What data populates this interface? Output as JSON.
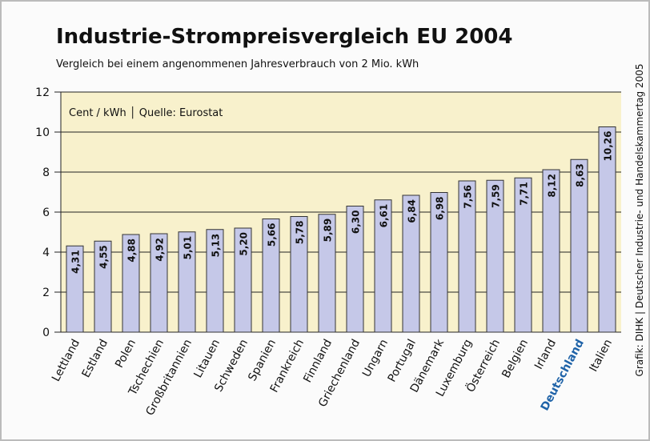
{
  "chart_data": {
    "type": "bar",
    "title": "Industrie-Strompreisvergleich EU 2004",
    "subtitle": "Vergleich bei einem angenommenen Jahresverbrauch von 2 Mio. kWh",
    "annotation": "Cent / kWh  │  Quelle: Eurostat",
    "source": "Grafik: DIHK | Deutscher Industrie- und Handelskammertag 2005",
    "categories": [
      "Lettland",
      "Estland",
      "Polen",
      "Tschechien",
      "Großbritannien",
      "Litauen",
      "Schweden",
      "Spanien",
      "Frankreich",
      "Finnland",
      "Griechenland",
      "Ungarn",
      "Portugal",
      "Dänemark",
      "Luxemburg",
      "Österreich",
      "Belgien",
      "Irland",
      "Deutschland",
      "Italien"
    ],
    "values": [
      4.31,
      4.55,
      4.88,
      4.92,
      5.01,
      5.13,
      5.2,
      5.66,
      5.78,
      5.89,
      6.3,
      6.61,
      6.84,
      6.98,
      7.56,
      7.59,
      7.71,
      8.12,
      8.63,
      10.26
    ],
    "value_labels": [
      "4,31",
      "4,55",
      "4,88",
      "4,92",
      "5,01",
      "5,13",
      "5,20",
      "5,66",
      "5,78",
      "5,89",
      "6,30",
      "6,61",
      "6,84",
      "6,98",
      "7,56",
      "7,59",
      "7,71",
      "8,12",
      "8,63",
      "10,26"
    ],
    "color": "#c5c8e8",
    "highlight": {
      "index": 18,
      "color": "#1f63a8"
    },
    "ylim": [
      0,
      12
    ],
    "yticks": [
      0,
      2,
      4,
      6,
      8,
      10,
      12
    ],
    "grid": true
  }
}
